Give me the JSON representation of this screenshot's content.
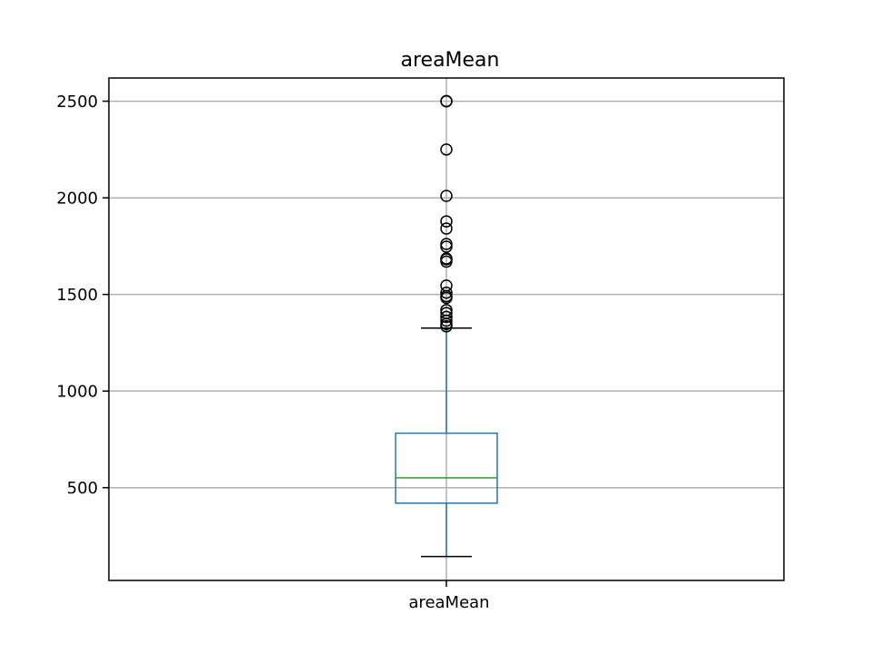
{
  "chart_data": {
    "type": "box",
    "title": "areaMean",
    "categories": [
      "areaMean"
    ],
    "xlabel": "",
    "ylabel": "",
    "ylim": [
      20,
      2620
    ],
    "yticks": [
      500,
      1000,
      1500,
      2000,
      2500
    ],
    "grid": true,
    "colors": {
      "box": "#1f77b4",
      "whisker": "#1f77b4",
      "cap": "#000000",
      "median": "#2ca02c",
      "flier": "#000000",
      "grid": "#b0b0b0"
    },
    "boxes": [
      {
        "name": "areaMean",
        "whislo": 143.5,
        "q1": 420,
        "median": 551,
        "q3": 782,
        "whishi": 1326,
        "fliers": [
          1335,
          1347,
          1364,
          1384,
          1404,
          1419,
          1482,
          1491,
          1509,
          1546,
          1670,
          1682,
          1686,
          1747,
          1761,
          1841,
          1878,
          2010,
          2250,
          2499,
          2501
        ]
      }
    ]
  }
}
